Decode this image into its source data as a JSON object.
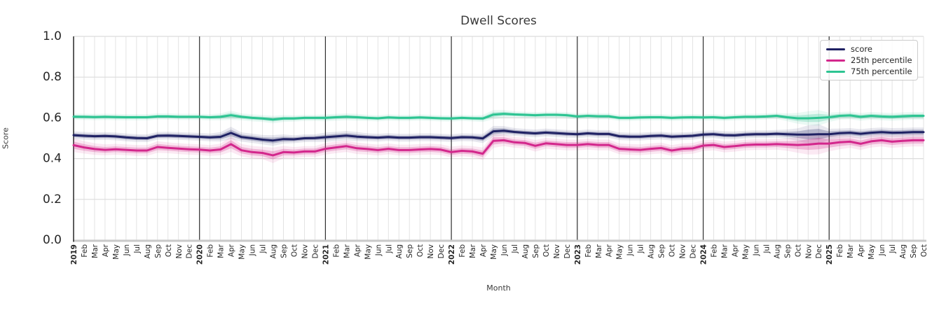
{
  "title": "Dwell Scores",
  "legend": {
    "entries": [
      "score",
      "25th percentile",
      "75th percentile"
    ]
  },
  "colors": {
    "score": "#1f2163",
    "p25": "#d3278c",
    "p75": "#2dc492",
    "grid": "#dcdcdc",
    "year_line": "#2f2f2f",
    "left_spine": "#262626",
    "bottom_spine": "#c9c9c9",
    "tick_text": "#262626",
    "label_text": "#3a3a3a"
  },
  "chart_data": {
    "type": "line",
    "title": "Dwell Scores",
    "xlabel": "Month",
    "ylabel": "Score",
    "ylim": [
      0.0,
      1.0
    ],
    "yticks": [
      0.0,
      0.2,
      0.4,
      0.6,
      0.8,
      1.0
    ],
    "grid": true,
    "legend_position": "upper right",
    "x_tick_labels": [
      "2019",
      "Feb",
      "Mar",
      "Apr",
      "May",
      "Jun",
      "Jul",
      "Aug",
      "Sep",
      "Oct",
      "Nov",
      "Dec",
      "2020",
      "Feb",
      "Mar",
      "Apr",
      "May",
      "Jun",
      "Jul",
      "Aug",
      "Sep",
      "Oct",
      "Nov",
      "Dec",
      "2021",
      "Feb",
      "Mar",
      "Apr",
      "May",
      "Jun",
      "Jul",
      "Aug",
      "Sep",
      "Oct",
      "Nov",
      "Dec",
      "2022",
      "Feb",
      "Mar",
      "Apr",
      "May",
      "Jun",
      "Jul",
      "Aug",
      "Sep",
      "Oct",
      "Nov",
      "Dec",
      "2023",
      "Feb",
      "Mar",
      "Apr",
      "May",
      "Jun",
      "Jul",
      "Aug",
      "Sep",
      "Oct",
      "Nov",
      "Dec",
      "2024",
      "Feb",
      "Mar",
      "Apr",
      "May",
      "Jun",
      "Jul",
      "Aug",
      "Sep",
      "Oct",
      "Nov",
      "Dec",
      "2025",
      "Feb",
      "Mar",
      "Apr",
      "May",
      "Jun",
      "Jul",
      "Aug",
      "Sep",
      "Oct"
    ],
    "year_line_indices": [
      12,
      24,
      36,
      48,
      60,
      72
    ],
    "series": [
      {
        "name": "score",
        "color": "#1f2163",
        "values": [
          0.515,
          0.512,
          0.51,
          0.511,
          0.509,
          0.504,
          0.501,
          0.5,
          0.512,
          0.513,
          0.511,
          0.509,
          0.507,
          0.504,
          0.507,
          0.526,
          0.506,
          0.5,
          0.493,
          0.489,
          0.496,
          0.495,
          0.5,
          0.501,
          0.505,
          0.509,
          0.513,
          0.508,
          0.505,
          0.503,
          0.506,
          0.503,
          0.503,
          0.505,
          0.505,
          0.503,
          0.501,
          0.505,
          0.504,
          0.499,
          0.534,
          0.537,
          0.531,
          0.527,
          0.524,
          0.528,
          0.525,
          0.522,
          0.52,
          0.524,
          0.521,
          0.521,
          0.51,
          0.508,
          0.508,
          0.511,
          0.513,
          0.508,
          0.51,
          0.512,
          0.518,
          0.52,
          0.515,
          0.514,
          0.518,
          0.52,
          0.52,
          0.522,
          0.52,
          0.518,
          0.518,
          0.52,
          0.52,
          0.525,
          0.527,
          0.522,
          0.527,
          0.53,
          0.527,
          0.528,
          0.53,
          0.53
        ],
        "band_halfwidth": [
          0.01,
          0.01,
          0.01,
          0.01,
          0.01,
          0.01,
          0.01,
          0.01,
          0.01,
          0.01,
          0.01,
          0.01,
          0.01,
          0.01,
          0.012,
          0.016,
          0.012,
          0.012,
          0.012,
          0.014,
          0.012,
          0.01,
          0.01,
          0.01,
          0.012,
          0.012,
          0.012,
          0.012,
          0.01,
          0.01,
          0.01,
          0.01,
          0.01,
          0.01,
          0.01,
          0.01,
          0.01,
          0.01,
          0.01,
          0.012,
          0.014,
          0.012,
          0.01,
          0.01,
          0.01,
          0.01,
          0.01,
          0.01,
          0.01,
          0.01,
          0.01,
          0.01,
          0.01,
          0.01,
          0.01,
          0.01,
          0.01,
          0.01,
          0.01,
          0.01,
          0.01,
          0.01,
          0.01,
          0.01,
          0.01,
          0.01,
          0.01,
          0.01,
          0.012,
          0.016,
          0.024,
          0.026,
          0.014,
          0.012,
          0.012,
          0.012,
          0.012,
          0.012,
          0.012,
          0.012,
          0.012,
          0.012
        ]
      },
      {
        "name": "25th percentile",
        "color": "#d3278c",
        "values": [
          0.466,
          0.455,
          0.447,
          0.443,
          0.446,
          0.443,
          0.44,
          0.44,
          0.457,
          0.453,
          0.449,
          0.446,
          0.444,
          0.44,
          0.445,
          0.471,
          0.441,
          0.432,
          0.428,
          0.416,
          0.432,
          0.43,
          0.435,
          0.435,
          0.448,
          0.455,
          0.461,
          0.451,
          0.447,
          0.442,
          0.448,
          0.442,
          0.442,
          0.445,
          0.447,
          0.444,
          0.432,
          0.438,
          0.435,
          0.424,
          0.487,
          0.49,
          0.48,
          0.477,
          0.463,
          0.475,
          0.471,
          0.467,
          0.467,
          0.471,
          0.467,
          0.467,
          0.448,
          0.445,
          0.443,
          0.448,
          0.452,
          0.44,
          0.448,
          0.45,
          0.464,
          0.467,
          0.457,
          0.461,
          0.467,
          0.469,
          0.469,
          0.471,
          0.469,
          0.467,
          0.469,
          0.474,
          0.474,
          0.48,
          0.483,
          0.473,
          0.485,
          0.49,
          0.483,
          0.487,
          0.49,
          0.49
        ],
        "band_halfwidth": [
          0.018,
          0.016,
          0.015,
          0.014,
          0.014,
          0.014,
          0.014,
          0.014,
          0.015,
          0.014,
          0.014,
          0.014,
          0.014,
          0.014,
          0.015,
          0.02,
          0.016,
          0.016,
          0.016,
          0.02,
          0.016,
          0.014,
          0.014,
          0.014,
          0.015,
          0.015,
          0.015,
          0.015,
          0.014,
          0.014,
          0.014,
          0.014,
          0.014,
          0.014,
          0.014,
          0.014,
          0.014,
          0.014,
          0.014,
          0.016,
          0.018,
          0.015,
          0.014,
          0.014,
          0.015,
          0.014,
          0.014,
          0.014,
          0.014,
          0.014,
          0.014,
          0.014,
          0.014,
          0.014,
          0.014,
          0.014,
          0.014,
          0.014,
          0.014,
          0.014,
          0.014,
          0.014,
          0.014,
          0.014,
          0.014,
          0.014,
          0.014,
          0.014,
          0.016,
          0.02,
          0.026,
          0.028,
          0.02,
          0.018,
          0.016,
          0.016,
          0.016,
          0.016,
          0.016,
          0.016,
          0.016,
          0.016
        ]
      },
      {
        "name": "75th percentile",
        "color": "#2dc492",
        "values": [
          0.606,
          0.605,
          0.604,
          0.605,
          0.604,
          0.603,
          0.603,
          0.603,
          0.607,
          0.607,
          0.605,
          0.605,
          0.605,
          0.603,
          0.605,
          0.613,
          0.605,
          0.6,
          0.597,
          0.592,
          0.597,
          0.597,
          0.6,
          0.6,
          0.6,
          0.603,
          0.605,
          0.603,
          0.6,
          0.598,
          0.602,
          0.6,
          0.6,
          0.602,
          0.6,
          0.598,
          0.597,
          0.6,
          0.598,
          0.597,
          0.616,
          0.62,
          0.617,
          0.615,
          0.613,
          0.615,
          0.615,
          0.613,
          0.607,
          0.61,
          0.608,
          0.608,
          0.6,
          0.6,
          0.602,
          0.603,
          0.603,
          0.6,
          0.602,
          0.603,
          0.602,
          0.603,
          0.6,
          0.603,
          0.605,
          0.605,
          0.607,
          0.61,
          0.603,
          0.598,
          0.598,
          0.6,
          0.603,
          0.61,
          0.612,
          0.605,
          0.61,
          0.607,
          0.605,
          0.608,
          0.61,
          0.61
        ],
        "band_halfwidth": [
          0.008,
          0.008,
          0.008,
          0.008,
          0.008,
          0.008,
          0.008,
          0.008,
          0.008,
          0.008,
          0.008,
          0.008,
          0.008,
          0.008,
          0.009,
          0.012,
          0.009,
          0.009,
          0.009,
          0.01,
          0.009,
          0.008,
          0.008,
          0.008,
          0.009,
          0.009,
          0.009,
          0.009,
          0.008,
          0.008,
          0.008,
          0.008,
          0.008,
          0.008,
          0.008,
          0.008,
          0.008,
          0.008,
          0.008,
          0.009,
          0.012,
          0.01,
          0.008,
          0.008,
          0.008,
          0.008,
          0.008,
          0.008,
          0.008,
          0.008,
          0.008,
          0.008,
          0.008,
          0.008,
          0.008,
          0.008,
          0.008,
          0.008,
          0.008,
          0.008,
          0.008,
          0.008,
          0.008,
          0.008,
          0.008,
          0.008,
          0.008,
          0.008,
          0.01,
          0.014,
          0.018,
          0.02,
          0.012,
          0.01,
          0.01,
          0.01,
          0.01,
          0.01,
          0.01,
          0.01,
          0.01,
          0.01
        ]
      }
    ]
  }
}
